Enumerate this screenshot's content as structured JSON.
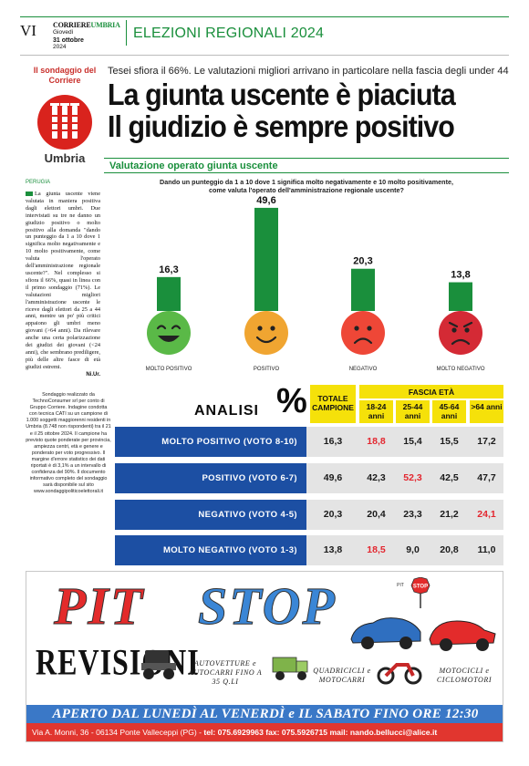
{
  "masthead": {
    "page_number": "VI",
    "logo_part1": "CORRIERE",
    "logo_part2": "UMBRIA",
    "weekday": "Giovedì",
    "date": "31 ottobre",
    "year": "2024",
    "section": "ELEZIONI REGIONALI 2024"
  },
  "badge": {
    "title": "Il sondaggio del Corriere",
    "region": "Umbria"
  },
  "kicker": "Tesei sfiora il 66%. Le valutazioni migliori arrivano in particolare nella fascia degli under 44",
  "headline": {
    "line1": "La giunta uscente è piaciuta",
    "line2": "Il giudizio è sempre positivo"
  },
  "chart_section_title": "Valutazione operato giunta uscente",
  "question": {
    "line1": "Dando un punteggio da 1 a 10 dove 1 significa molto negativamente e 10 molto positivamente,",
    "line2": "come valuta l'operato dell'amministrazione regionale uscente?"
  },
  "article": {
    "dateline": "PERUGIA",
    "body": "La giunta uscente viene valutata in maniera positiva dagli elettori umbri. Due intervistati su tre ne danno un giudizio positivo o molto positivo alla domanda \"dando un punteggio da 1 a 10 dove 1 significa molto negativamente e 10 molto positivamente, come valuta l'operato dell'amministrazione regionale uscente?\". Nel complesso si sfiora il 66%, quasi in linea con il primo sondaggio (71%). Le valutazioni migliori l'amministrazione uscente le riceve dagli elettori da 25 a 44 anni, mentre un po' più critici appaiono gli umbri meno giovani (>64 anni). Da rilevare anche una certa polarizzazione dei giudizi dei giovani (<24 anni), che sembrano prediligere, più delle altre fasce di età giudizi estremi.",
    "signature": "Ni.Ur."
  },
  "methodology": "Sondaggio realizzato da TechnoConsumer srl per conto di Gruppo Corriere. Indagine condotta con tecnica CATI su un campione di 1.000 soggetti maggiorenni residenti in Umbria (8.748 non rispondenti) tra il 21 e il 25 ottobre 2024. Il campione ha previsto quote ponderate per provincia, ampiezza centri, età e genere e ponderato per voto progressivo. Il margine d'errore statistico dei dati riportati è di 3,1% a un intervallo di confidenza del 90%. Il documento informativo completo del sondaggio sarà disponibile sul sito www.sondaggipoliticoelettorali.it",
  "chart_data": {
    "type": "bar",
    "categories": [
      "MOLTO POSITIVO",
      "POSITIVO",
      "NEGATIVO",
      "MOLTO NEGATIVO"
    ],
    "values": [
      16.3,
      49.6,
      20.3,
      13.8
    ],
    "value_labels": [
      "16,3",
      "49,6",
      "20,3",
      "13,8"
    ],
    "bar_color": "#1a8f3c",
    "face_colors": [
      "#5ab947",
      "#f0a531",
      "#ee4737",
      "#d42a35"
    ],
    "face_expressions": [
      "laughing-face-icon",
      "smiling-face-icon",
      "sad-face-icon",
      "angry-face-icon"
    ],
    "title": "Valutazione operato giunta uscente"
  },
  "table": {
    "title": "ANALISI",
    "percent_symbol": "%",
    "total_header": "TOTALE CAMPIONE",
    "age_group_header": "FASCIA ETÀ",
    "age_headers": [
      "18-24 anni",
      "25-44 anni",
      "45-64 anni",
      ">64 anni"
    ],
    "rows": [
      {
        "label": "MOLTO POSITIVO (VOTO 8-10)",
        "total": "16,3",
        "ages": [
          "18,8",
          "15,4",
          "15,5",
          "17,2"
        ],
        "highlight": 0
      },
      {
        "label": "POSITIVO (VOTO 6-7)",
        "total": "49,6",
        "ages": [
          "42,3",
          "52,3",
          "42,5",
          "47,7"
        ],
        "highlight": 1
      },
      {
        "label": "NEGATIVO (VOTO 4-5)",
        "total": "20,3",
        "ages": [
          "20,4",
          "23,3",
          "21,2",
          "24,1"
        ],
        "highlight": 3
      },
      {
        "label": "MOLTO NEGATIVO (VOTO 1-3)",
        "total": "13,8",
        "ages": [
          "18,5",
          "9,0",
          "20,8",
          "11,0"
        ],
        "highlight": 0
      }
    ],
    "header_color": "#f5e10a",
    "label_color": "#1c4fa3",
    "highlight_color": "#e3262f"
  },
  "ad": {
    "brand1": "PIT",
    "brand2": "STOP",
    "sign_text": "STOP",
    "sign_prefix": "PIT",
    "subtitle": "REVISIONI",
    "categories": [
      "AUTOVETTURE e AUTOCARRI FINO A 35 Q.LI",
      "QUADRICICLI e MOTOCARRI",
      "MOTOCICLI e CICLOMOTORI"
    ],
    "hours": "APERTO DAL LUNEDÌ AL VENERDÌ e IL SABATO FINO ORE 12:30",
    "address": "Via A. Monni, 36 - 06134 Ponte Valleceppi (PG) -",
    "contacts": "tel: 075.6929963 fax: 075.5926715 mail: nando.bellucci@alice.it"
  }
}
